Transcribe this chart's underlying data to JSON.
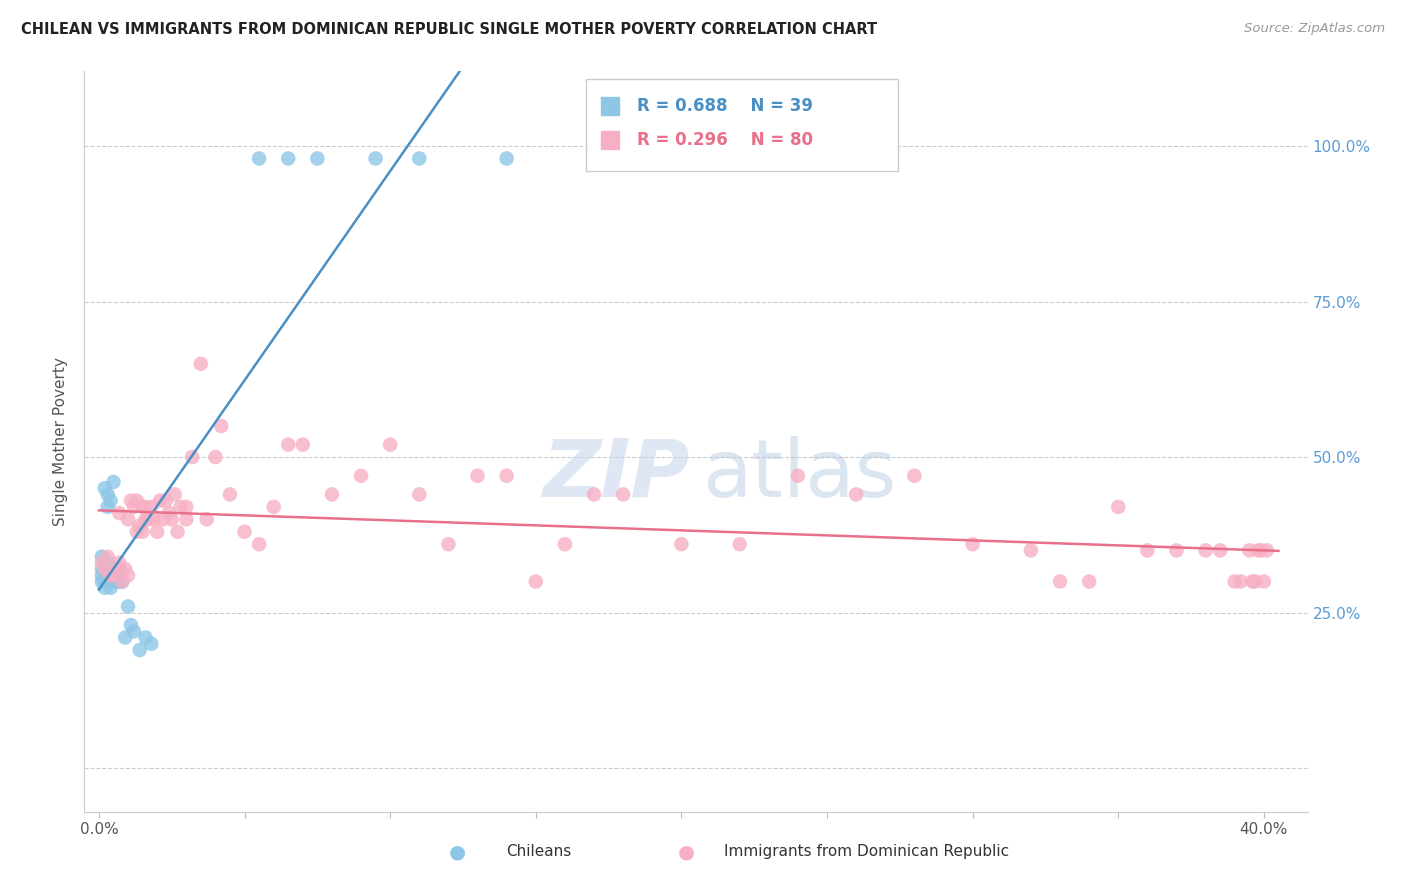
{
  "title": "CHILEAN VS IMMIGRANTS FROM DOMINICAN REPUBLIC SINGLE MOTHER POVERTY CORRELATION CHART",
  "source": "Source: ZipAtlas.com",
  "ylabel": "Single Mother Poverty",
  "ytick_positions": [
    0.0,
    0.25,
    0.5,
    0.75,
    1.0
  ],
  "ytick_labels_right": [
    "",
    "25.0%",
    "50.0%",
    "75.0%",
    "100.0%"
  ],
  "xtick_positions": [
    0.0,
    0.05,
    0.1,
    0.15,
    0.2,
    0.25,
    0.3,
    0.35,
    0.4
  ],
  "xtick_labels": [
    "0.0%",
    "",
    "",
    "",
    "",
    "",
    "",
    "",
    "40.0%"
  ],
  "xlim": [
    -0.005,
    0.415
  ],
  "ylim": [
    -0.07,
    1.12
  ],
  "chileans_R": 0.688,
  "chileans_N": 39,
  "dominican_R": 0.296,
  "dominican_N": 80,
  "chilean_color": "#8ec6e6",
  "dominican_color": "#f7afc3",
  "chilean_line_color": "#4a90c4",
  "dominican_line_color": "#e8708a",
  "chilean_x": [
    0.001,
    0.001,
    0.001,
    0.001,
    0.002,
    0.002,
    0.002,
    0.002,
    0.003,
    0.003,
    0.003,
    0.003,
    0.003,
    0.004,
    0.004,
    0.004,
    0.005,
    0.005,
    0.005,
    0.005,
    0.006,
    0.006,
    0.006,
    0.007,
    0.007,
    0.008,
    0.009,
    0.01,
    0.011,
    0.012,
    0.014,
    0.016,
    0.018,
    0.055,
    0.065,
    0.075,
    0.095,
    0.11,
    0.14
  ],
  "chilean_y": [
    0.3,
    0.31,
    0.32,
    0.34,
    0.29,
    0.3,
    0.32,
    0.45,
    0.3,
    0.31,
    0.33,
    0.42,
    0.44,
    0.29,
    0.31,
    0.43,
    0.3,
    0.31,
    0.32,
    0.46,
    0.3,
    0.31,
    0.32,
    0.3,
    0.32,
    0.3,
    0.21,
    0.26,
    0.23,
    0.22,
    0.19,
    0.21,
    0.2,
    0.98,
    0.98,
    0.98,
    0.98,
    0.98,
    0.98
  ],
  "dominican_x": [
    0.001,
    0.002,
    0.003,
    0.004,
    0.005,
    0.006,
    0.007,
    0.007,
    0.008,
    0.009,
    0.01,
    0.01,
    0.011,
    0.012,
    0.013,
    0.013,
    0.014,
    0.015,
    0.015,
    0.016,
    0.016,
    0.017,
    0.018,
    0.019,
    0.02,
    0.021,
    0.022,
    0.023,
    0.024,
    0.025,
    0.026,
    0.027,
    0.028,
    0.03,
    0.03,
    0.032,
    0.035,
    0.037,
    0.04,
    0.042,
    0.045,
    0.05,
    0.055,
    0.06,
    0.065,
    0.07,
    0.08,
    0.09,
    0.1,
    0.11,
    0.12,
    0.13,
    0.14,
    0.15,
    0.16,
    0.17,
    0.18,
    0.2,
    0.22,
    0.24,
    0.26,
    0.28,
    0.3,
    0.32,
    0.33,
    0.34,
    0.35,
    0.36,
    0.37,
    0.38,
    0.385,
    0.39,
    0.392,
    0.395,
    0.396,
    0.397,
    0.398,
    0.399,
    0.4,
    0.401
  ],
  "dominican_y": [
    0.33,
    0.32,
    0.34,
    0.31,
    0.31,
    0.32,
    0.33,
    0.41,
    0.3,
    0.32,
    0.31,
    0.4,
    0.43,
    0.42,
    0.38,
    0.43,
    0.39,
    0.38,
    0.42,
    0.4,
    0.42,
    0.4,
    0.42,
    0.4,
    0.38,
    0.43,
    0.4,
    0.43,
    0.41,
    0.4,
    0.44,
    0.38,
    0.42,
    0.42,
    0.4,
    0.5,
    0.65,
    0.4,
    0.5,
    0.55,
    0.44,
    0.38,
    0.36,
    0.42,
    0.52,
    0.52,
    0.44,
    0.47,
    0.52,
    0.44,
    0.36,
    0.47,
    0.47,
    0.3,
    0.36,
    0.44,
    0.44,
    0.36,
    0.36,
    0.47,
    0.44,
    0.47,
    0.36,
    0.35,
    0.3,
    0.3,
    0.42,
    0.35,
    0.35,
    0.35,
    0.35,
    0.3,
    0.3,
    0.35,
    0.3,
    0.3,
    0.35,
    0.35,
    0.3,
    0.35
  ]
}
